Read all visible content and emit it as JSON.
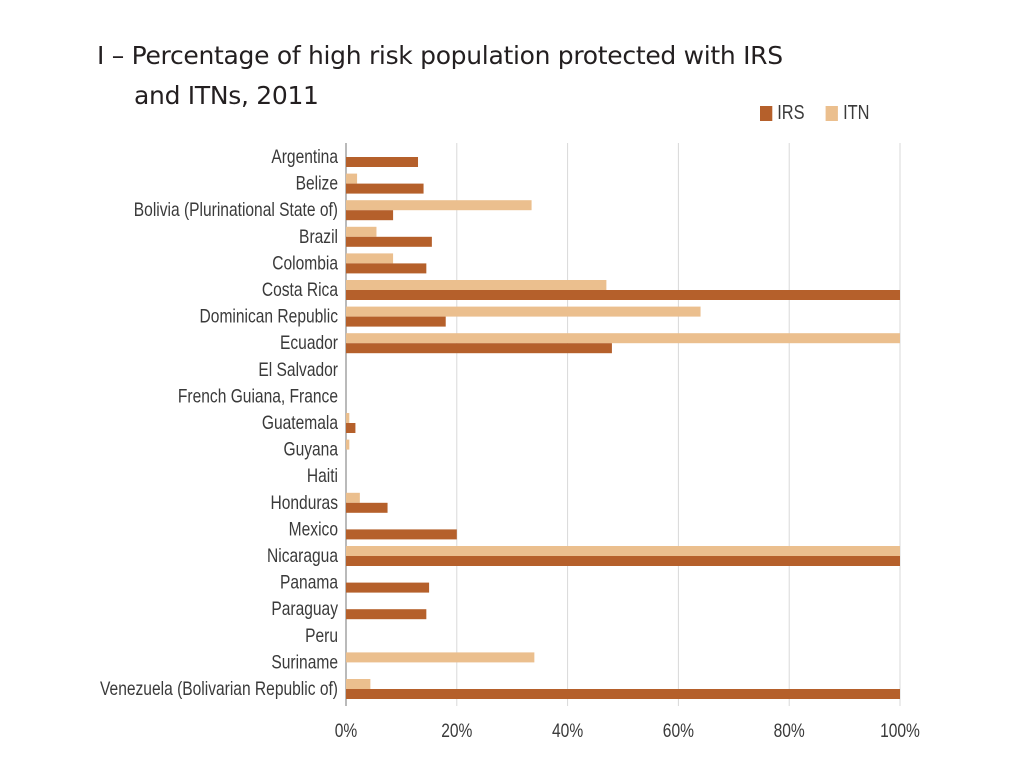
{
  "chart_data": {
    "type": "bar",
    "orientation": "horizontal",
    "title_line1": "I – Percentage of high risk population protected with IRS",
    "title_line2": "and ITNs, 2011",
    "categories": [
      "Argentina",
      "Belize",
      "Bolivia (Plurinational State of)",
      "Brazil",
      "Colombia",
      "Costa Rica",
      "Dominican Republic",
      "Ecuador",
      "El Salvador",
      "French Guiana, France",
      "Guatemala",
      "Guyana",
      "Haiti",
      "Honduras",
      "Mexico",
      "Nicaragua",
      "Panama",
      "Paraguay",
      "Peru",
      "Suriname",
      "Venezuela (Bolivarian Republic of)"
    ],
    "series": [
      {
        "name": "IRS",
        "color": "#b5602b",
        "values": [
          13,
          14,
          8.5,
          15.5,
          14.5,
          100,
          18,
          48,
          0,
          0,
          1.7,
          0,
          0,
          7.5,
          20,
          100,
          15,
          14.5,
          0,
          0,
          100
        ]
      },
      {
        "name": "ITN",
        "color": "#ebbf8e",
        "values": [
          0,
          2,
          33.5,
          5.5,
          8.5,
          47,
          64,
          100,
          0,
          0,
          0.6,
          0.6,
          0,
          2.5,
          0,
          100,
          0,
          0,
          0,
          34,
          4.4
        ]
      }
    ],
    "xlim": [
      0,
      100
    ],
    "xticks": [
      "0%",
      "20%",
      "40%",
      "60%",
      "80%",
      "100%"
    ],
    "xlabel": "",
    "ylabel": "",
    "grid": "vertical",
    "legend": "top-right"
  }
}
